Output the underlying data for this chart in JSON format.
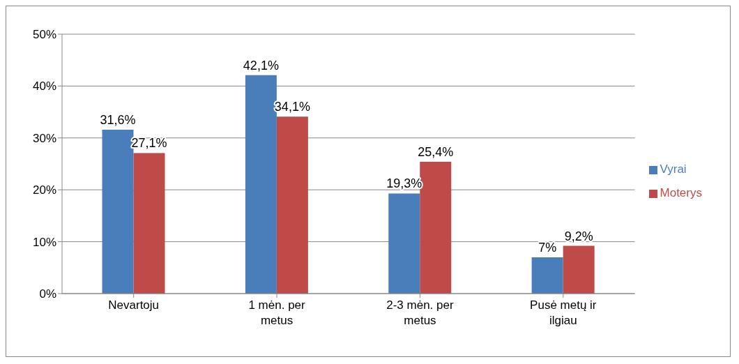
{
  "chart_data": {
    "type": "bar",
    "categories": [
      "Nevartoju",
      "1 mėn. per metus",
      "2-3 mėn. per metus",
      "Pusė metų ir ilgiau"
    ],
    "series": [
      {
        "name": "Vyrai",
        "color": "#4a7ebb",
        "values": [
          31.6,
          42.1,
          19.3,
          7
        ],
        "value_labels": [
          "31,6%",
          "42,1%",
          "19,3%",
          "7%"
        ]
      },
      {
        "name": "Moterys",
        "color": "#be4b48",
        "values": [
          27.1,
          34.1,
          25.4,
          9.2
        ],
        "value_labels": [
          "27,1%",
          "34,1%",
          "25,4%",
          "9,2%"
        ]
      }
    ],
    "ylim": [
      0,
      50
    ],
    "yticks": [
      {
        "value": 0,
        "label": "0%"
      },
      {
        "value": 10,
        "label": "10%"
      },
      {
        "value": 20,
        "label": "20%"
      },
      {
        "value": 30,
        "label": "30%"
      },
      {
        "value": 40,
        "label": "40%"
      },
      {
        "value": 50,
        "label": "50%"
      }
    ],
    "grid": "y",
    "legend": "right"
  }
}
